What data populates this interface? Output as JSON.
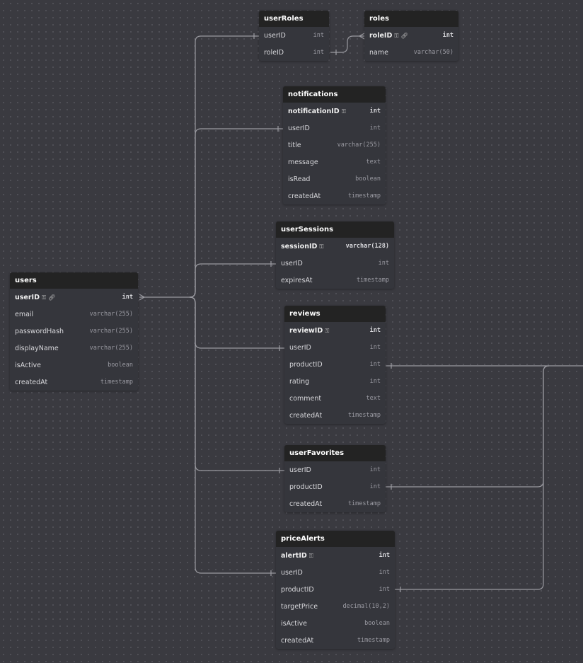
{
  "tables": [
    {
      "name": "userRoles",
      "fields": [
        {
          "name": "userID",
          "type": "int"
        },
        {
          "name": "roleID",
          "type": "int"
        }
      ]
    },
    {
      "name": "roles",
      "fields": [
        {
          "name": "roleID",
          "type": "int",
          "pk": true,
          "ref": true
        },
        {
          "name": "name",
          "type": "varchar(50)"
        }
      ]
    },
    {
      "name": "notifications",
      "fields": [
        {
          "name": "notificationID",
          "type": "int",
          "pk": true
        },
        {
          "name": "userID",
          "type": "int"
        },
        {
          "name": "title",
          "type": "varchar(255)"
        },
        {
          "name": "message",
          "type": "text"
        },
        {
          "name": "isRead",
          "type": "boolean"
        },
        {
          "name": "createdAt",
          "type": "timestamp"
        }
      ]
    },
    {
      "name": "userSessions",
      "fields": [
        {
          "name": "sessionID",
          "type": "varchar(128)",
          "pk": true
        },
        {
          "name": "userID",
          "type": "int"
        },
        {
          "name": "expiresAt",
          "type": "timestamp"
        }
      ]
    },
    {
      "name": "users",
      "fields": [
        {
          "name": "userID",
          "type": "int",
          "pk": true,
          "ref": true
        },
        {
          "name": "email",
          "type": "varchar(255)"
        },
        {
          "name": "passwordHash",
          "type": "varchar(255)"
        },
        {
          "name": "displayName",
          "type": "varchar(255)"
        },
        {
          "name": "isActive",
          "type": "boolean"
        },
        {
          "name": "createdAt",
          "type": "timestamp"
        }
      ]
    },
    {
      "name": "reviews",
      "fields": [
        {
          "name": "reviewID",
          "type": "int",
          "pk": true
        },
        {
          "name": "userID",
          "type": "int"
        },
        {
          "name": "productID",
          "type": "int"
        },
        {
          "name": "rating",
          "type": "int"
        },
        {
          "name": "comment",
          "type": "text"
        },
        {
          "name": "createdAt",
          "type": "timestamp"
        }
      ]
    },
    {
      "name": "userFavorites",
      "fields": [
        {
          "name": "userID",
          "type": "int"
        },
        {
          "name": "productID",
          "type": "int"
        },
        {
          "name": "createdAt",
          "type": "timestamp"
        }
      ]
    },
    {
      "name": "priceAlerts",
      "fields": [
        {
          "name": "alertID",
          "type": "int",
          "pk": true
        },
        {
          "name": "userID",
          "type": "int"
        },
        {
          "name": "productID",
          "type": "int"
        },
        {
          "name": "targetPrice",
          "type": "decimal(10,2)"
        },
        {
          "name": "isActive",
          "type": "boolean"
        },
        {
          "name": "createdAt",
          "type": "timestamp"
        }
      ]
    }
  ],
  "icons": {
    "pk": "key-icon",
    "ref": "link-icon"
  },
  "colors": {
    "background": "#3a3a40",
    "header": "#232323",
    "body": "#35363c",
    "edge": "#9a9aa0"
  }
}
